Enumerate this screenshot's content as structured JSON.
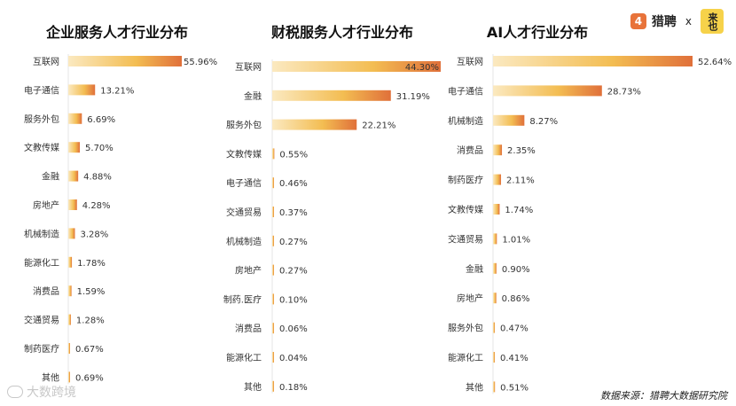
{
  "brand": {
    "logo_glyph": "4",
    "name": "猎聘",
    "separator": "x",
    "partner": "来也"
  },
  "watermark": "大数跨境",
  "footer": "数据来源：猎聘大数据研究院",
  "colors": {
    "bar_start": "#fbe9c0",
    "bar_mid": "#f3bd52",
    "bar_end": "#e0703a"
  },
  "chart_data": [
    {
      "type": "bar",
      "title": "企业服务人才行业分布",
      "categories": [
        "互联网",
        "电子通信",
        "服务外包",
        "文教传媒",
        "金融",
        "房地产",
        "机械制造",
        "能源化工",
        "消费品",
        "交通贸易",
        "制药医疗",
        "其他"
      ],
      "values": [
        55.96,
        13.21,
        6.69,
        5.7,
        4.88,
        4.28,
        3.28,
        1.78,
        1.59,
        1.28,
        0.67,
        0.69
      ],
      "value_labels": [
        "55.96%",
        "13.21%",
        "6.69%",
        "5.70%",
        "4.88%",
        "4.28%",
        "3.28%",
        "1.78%",
        "1.59%",
        "1.28%",
        "0.67%",
        "0.69%"
      ]
    },
    {
      "type": "bar",
      "title": "财税服务人才行业分布",
      "categories": [
        "互联网",
        "金融",
        "服务外包",
        "文教传媒",
        "电子通信",
        "交通贸易",
        "机械制造",
        "房地产",
        "制药.医疗",
        "消费品",
        "能源化工",
        "其他"
      ],
      "values": [
        44.3,
        31.19,
        22.21,
        0.55,
        0.46,
        0.37,
        0.27,
        0.27,
        0.1,
        0.06,
        0.04,
        0.18
      ],
      "value_labels": [
        "44.30%",
        "31.19%",
        "22.21%",
        "0.55%",
        "0.46%",
        "0.37%",
        "0.27%",
        "0.27%",
        "0.10%",
        "0.06%",
        "0.04%",
        "0.18%"
      ]
    },
    {
      "type": "bar",
      "title": "AI人才行业分布",
      "categories": [
        "互联网",
        "电子通信",
        "机械制造",
        "消费品",
        "制药医疗",
        "文教传媒",
        "交通贸易",
        "金融",
        "房地产",
        "服务外包",
        "能源化工",
        "其他"
      ],
      "values": [
        52.64,
        28.73,
        8.27,
        2.35,
        2.11,
        1.74,
        1.01,
        0.9,
        0.86,
        0.47,
        0.41,
        0.51
      ],
      "value_labels": [
        "52.64%",
        "28.73%",
        "8.27%",
        "2.35%",
        "2.11%",
        "1.74%",
        "1.01%",
        "0.90%",
        "0.86%",
        "0.47%",
        "0.41%",
        "0.51%"
      ]
    }
  ]
}
